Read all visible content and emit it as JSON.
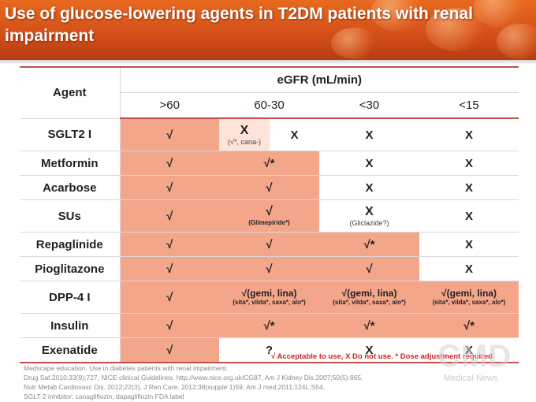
{
  "header": {
    "title": "Use of glucose-lowering agents in T2DM patients with renal impairment"
  },
  "table": {
    "agent_header": "Agent",
    "egfr_header": "eGFR (mL/min)",
    "columns": [
      ">60",
      "60-30",
      "<30",
      "<15"
    ],
    "rows": {
      "sglt2": {
        "name": "SGLT2 I",
        "c1": "√",
        "c2a": "X",
        "c2a_note": "(√*, cana-)",
        "c2b": "X",
        "c3": "X",
        "c4": "X"
      },
      "metformin": {
        "name": "Metformin",
        "c1": "√",
        "c2": "√*",
        "c3": "X",
        "c4": "X"
      },
      "acarbose": {
        "name": "Acarbose",
        "c1": "√",
        "c2": "√",
        "c3": "X",
        "c4": "X"
      },
      "sus": {
        "name": "SUs",
        "c1": "√",
        "c2": "√",
        "c2_note": "(Glimepiride*)",
        "c3": "X",
        "c3_note": "(Gliclazide?)",
        "c4": "X"
      },
      "repaglinide": {
        "name": "Repaglinide",
        "c1": "√",
        "c2": "√",
        "c3": "√*",
        "c4": "X"
      },
      "pioglitazone": {
        "name": "Pioglitazone",
        "c1": "√",
        "c2": "√",
        "c3": "√",
        "c4": "X"
      },
      "dpp4": {
        "name": "DPP-4 I",
        "c1": "√",
        "c2": "√(gemi, lina)",
        "c2_note": "(sita*, vilda*, saxa*, alo*)",
        "c3": "√(gemi, lina)",
        "c3_note": "(sita*, vilda*, saxa*, alo*)",
        "c4": "√(gemi, lina)",
        "c4_note": "(sita*, vilda*, saxa*, alo*)"
      },
      "insulin": {
        "name": "Insulin",
        "c1": "√",
        "c2": "√*",
        "c3": "√*",
        "c4": "√*"
      },
      "exenatide": {
        "name": "Exenatide",
        "c1": "√",
        "c2": "?",
        "c3": "X",
        "c4": "X"
      }
    }
  },
  "legend": "√ Acceptable to use, X Do not use. * Dose adjustment required",
  "references": [
    "Medscape education. Use in diabetes patients with renal impairment.",
    "Drug Saf.2010;33(9);727,  NICE clinical Guidelines. http://www.nice.org.uk/CG87,  Am J Kidney Dis.2007;50(5):865,",
    "Nutr Metab Cardiovasc Dis. 2012;22(3),  J Ren Care. 2012;38(supple 1)59,  Am J med.2011;124L:S54,",
    "SGLT-2 inhibitor; canagliflozin, dapagliflozin FDA label"
  ],
  "watermark": {
    "logo": "CMD",
    "sub": "Medical News"
  },
  "colors": {
    "header_orange": "#d4501a",
    "cell_salmon": "#f4a68a",
    "rule_red": "#c0504d",
    "agent_grey": "#5a6f7d",
    "agent_orange": "#e8784a",
    "agent_red": "#d01010"
  }
}
